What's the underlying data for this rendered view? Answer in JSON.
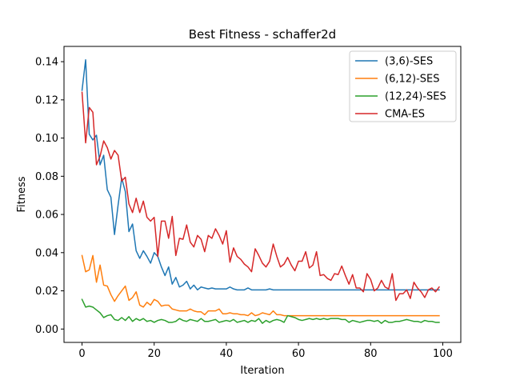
{
  "chart_data": {
    "type": "line",
    "title": "Best Fitness - schaffer2d",
    "xlabel": "Iteration",
    "ylabel": "Fitness",
    "xlim": [
      -5,
      105
    ],
    "ylim": [
      -0.007,
      0.148
    ],
    "xticks": [
      0,
      20,
      40,
      60,
      80,
      100
    ],
    "yticks": [
      0.0,
      0.02,
      0.04,
      0.06,
      0.08,
      0.1,
      0.12,
      0.14
    ],
    "ytick_labels": [
      "0.00",
      "0.02",
      "0.04",
      "0.06",
      "0.08",
      "0.10",
      "0.12",
      "0.14"
    ],
    "grid": false,
    "legend_position": "top-right",
    "x": [
      0,
      1,
      2,
      3,
      4,
      5,
      6,
      7,
      8,
      9,
      10,
      11,
      12,
      13,
      14,
      15,
      16,
      17,
      18,
      19,
      20,
      21,
      22,
      23,
      24,
      25,
      26,
      27,
      28,
      29,
      30,
      31,
      32,
      33,
      34,
      35,
      36,
      37,
      38,
      39,
      40,
      41,
      42,
      43,
      44,
      45,
      46,
      47,
      48,
      49,
      50,
      51,
      52,
      53,
      54,
      55,
      56,
      57,
      58,
      59,
      60,
      61,
      62,
      63,
      64,
      65,
      66,
      67,
      68,
      69,
      70,
      71,
      72,
      73,
      74,
      75,
      76,
      77,
      78,
      79,
      80,
      81,
      82,
      83,
      84,
      85,
      86,
      87,
      88,
      89,
      90,
      91,
      92,
      93,
      94,
      95,
      96,
      97,
      98,
      99
    ],
    "series": [
      {
        "name": "(3,6)-SES",
        "color": "#1f77b4",
        "values": [
          0.125,
          0.141,
          0.102,
          0.099,
          0.1015,
          0.086,
          0.091,
          0.073,
          0.069,
          0.0495,
          0.065,
          0.079,
          0.072,
          0.051,
          0.055,
          0.041,
          0.037,
          0.041,
          0.038,
          0.0345,
          0.04,
          0.038,
          0.0325,
          0.028,
          0.0325,
          0.0235,
          0.027,
          0.022,
          0.023,
          0.025,
          0.021,
          0.023,
          0.0205,
          0.022,
          0.0215,
          0.021,
          0.0215,
          0.021,
          0.021,
          0.021,
          0.021,
          0.022,
          0.021,
          0.0205,
          0.0205,
          0.0205,
          0.0215,
          0.0205,
          0.0205,
          0.0205,
          0.0205,
          0.0205,
          0.021,
          0.0205,
          0.0205,
          0.0205,
          0.0205,
          0.0205,
          0.0205,
          0.0205,
          0.0205,
          0.0205,
          0.0205,
          0.0205,
          0.0205,
          0.0205,
          0.0205,
          0.0205,
          0.0205,
          0.0205,
          0.0205,
          0.0205,
          0.0205,
          0.0205,
          0.0205,
          0.0205,
          0.0205,
          0.0205,
          0.0205,
          0.0205,
          0.0205,
          0.0205,
          0.0205,
          0.0205,
          0.0205,
          0.0205,
          0.0205,
          0.0205,
          0.0205,
          0.0205,
          0.0205,
          0.0205,
          0.0205,
          0.0205,
          0.0205,
          0.0205,
          0.0205,
          0.0205,
          0.0205,
          0.0205
        ]
      },
      {
        "name": "(6,12)-SES",
        "color": "#ff7f0e",
        "values": [
          0.0385,
          0.03,
          0.031,
          0.0385,
          0.0245,
          0.0335,
          0.023,
          0.0225,
          0.018,
          0.0145,
          0.0175,
          0.02,
          0.0225,
          0.015,
          0.0165,
          0.0195,
          0.0125,
          0.0115,
          0.014,
          0.0125,
          0.0155,
          0.0145,
          0.012,
          0.0125,
          0.0125,
          0.0105,
          0.01,
          0.0095,
          0.0095,
          0.0095,
          0.0105,
          0.0095,
          0.009,
          0.009,
          0.0075,
          0.0095,
          0.0095,
          0.0095,
          0.0105,
          0.008,
          0.008,
          0.0085,
          0.008,
          0.008,
          0.0075,
          0.0075,
          0.007,
          0.0085,
          0.007,
          0.0075,
          0.0085,
          0.008,
          0.0075,
          0.0095,
          0.0075,
          0.0075,
          0.007,
          0.007,
          0.007,
          0.007,
          0.007,
          0.007,
          0.007,
          0.007,
          0.007,
          0.007,
          0.007,
          0.007,
          0.007,
          0.007,
          0.007,
          0.007,
          0.007,
          0.007,
          0.007,
          0.007,
          0.007,
          0.007,
          0.007,
          0.007,
          0.007,
          0.007,
          0.007,
          0.007,
          0.007,
          0.007,
          0.007,
          0.007,
          0.007,
          0.007,
          0.007,
          0.007,
          0.007,
          0.007,
          0.007,
          0.007,
          0.007,
          0.007,
          0.007,
          0.007
        ]
      },
      {
        "name": "(12,24)-SES",
        "color": "#2ca02c",
        "values": [
          0.0155,
          0.0115,
          0.012,
          0.0115,
          0.01,
          0.0085,
          0.006,
          0.007,
          0.0075,
          0.005,
          0.0045,
          0.006,
          0.0045,
          0.0065,
          0.004,
          0.0055,
          0.0045,
          0.0055,
          0.004,
          0.0045,
          0.0035,
          0.0045,
          0.005,
          0.0045,
          0.0035,
          0.0035,
          0.004,
          0.0055,
          0.0045,
          0.004,
          0.005,
          0.0045,
          0.004,
          0.0055,
          0.004,
          0.004,
          0.0045,
          0.005,
          0.0035,
          0.004,
          0.0045,
          0.004,
          0.005,
          0.0035,
          0.004,
          0.0045,
          0.0035,
          0.0045,
          0.004,
          0.0055,
          0.003,
          0.0045,
          0.0035,
          0.0045,
          0.005,
          0.0045,
          0.0035,
          0.007,
          0.0065,
          0.006,
          0.005,
          0.0045,
          0.005,
          0.0055,
          0.005,
          0.0055,
          0.005,
          0.0055,
          0.005,
          0.0055,
          0.0055,
          0.0055,
          0.005,
          0.005,
          0.0035,
          0.0045,
          0.004,
          0.0035,
          0.004,
          0.0045,
          0.0045,
          0.004,
          0.0045,
          0.003,
          0.0045,
          0.0035,
          0.0035,
          0.004,
          0.004,
          0.0045,
          0.005,
          0.0045,
          0.004,
          0.004,
          0.0035,
          0.0045,
          0.004,
          0.004,
          0.0035,
          0.0035
        ]
      },
      {
        "name": "CMA-ES",
        "color": "#d62728",
        "values": [
          0.124,
          0.0975,
          0.116,
          0.1135,
          0.086,
          0.0905,
          0.0985,
          0.095,
          0.089,
          0.0935,
          0.091,
          0.0775,
          0.0795,
          0.0655,
          0.061,
          0.0685,
          0.061,
          0.067,
          0.0585,
          0.0565,
          0.0585,
          0.038,
          0.0565,
          0.0565,
          0.0475,
          0.059,
          0.0385,
          0.0475,
          0.047,
          0.0545,
          0.0455,
          0.043,
          0.049,
          0.047,
          0.0405,
          0.049,
          0.0475,
          0.0525,
          0.049,
          0.0445,
          0.0515,
          0.035,
          0.0425,
          0.038,
          0.0365,
          0.034,
          0.0325,
          0.03,
          0.042,
          0.0385,
          0.0345,
          0.0325,
          0.0355,
          0.0445,
          0.038,
          0.0325,
          0.034,
          0.0375,
          0.0335,
          0.0305,
          0.0355,
          0.0355,
          0.0405,
          0.032,
          0.0335,
          0.0405,
          0.028,
          0.0285,
          0.0265,
          0.0255,
          0.029,
          0.0285,
          0.033,
          0.028,
          0.0235,
          0.0285,
          0.0215,
          0.0215,
          0.0195,
          0.029,
          0.026,
          0.02,
          0.0215,
          0.0255,
          0.022,
          0.021,
          0.029,
          0.015,
          0.0185,
          0.0185,
          0.0205,
          0.016,
          0.0245,
          0.0215,
          0.0195,
          0.0165,
          0.0205,
          0.0215,
          0.0195,
          0.022
        ]
      }
    ]
  }
}
